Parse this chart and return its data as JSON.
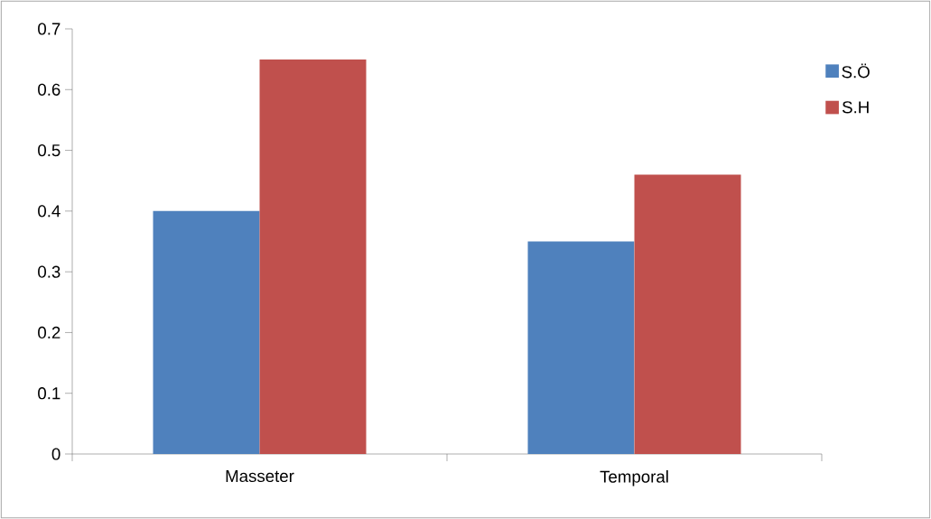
{
  "chart_data": {
    "type": "bar",
    "categories": [
      "Masseter",
      "Temporal"
    ],
    "series": [
      {
        "name": "S.Ö",
        "color": "#4f81bd",
        "values": [
          0.4,
          0.35
        ]
      },
      {
        "name": "S.H",
        "color": "#c0504d",
        "values": [
          0.65,
          0.46
        ]
      }
    ],
    "ylim": [
      0,
      0.7
    ],
    "yticks": [
      0,
      0.1,
      0.2,
      0.3,
      0.4,
      0.5,
      0.6,
      0.7
    ],
    "legend": "top right"
  }
}
